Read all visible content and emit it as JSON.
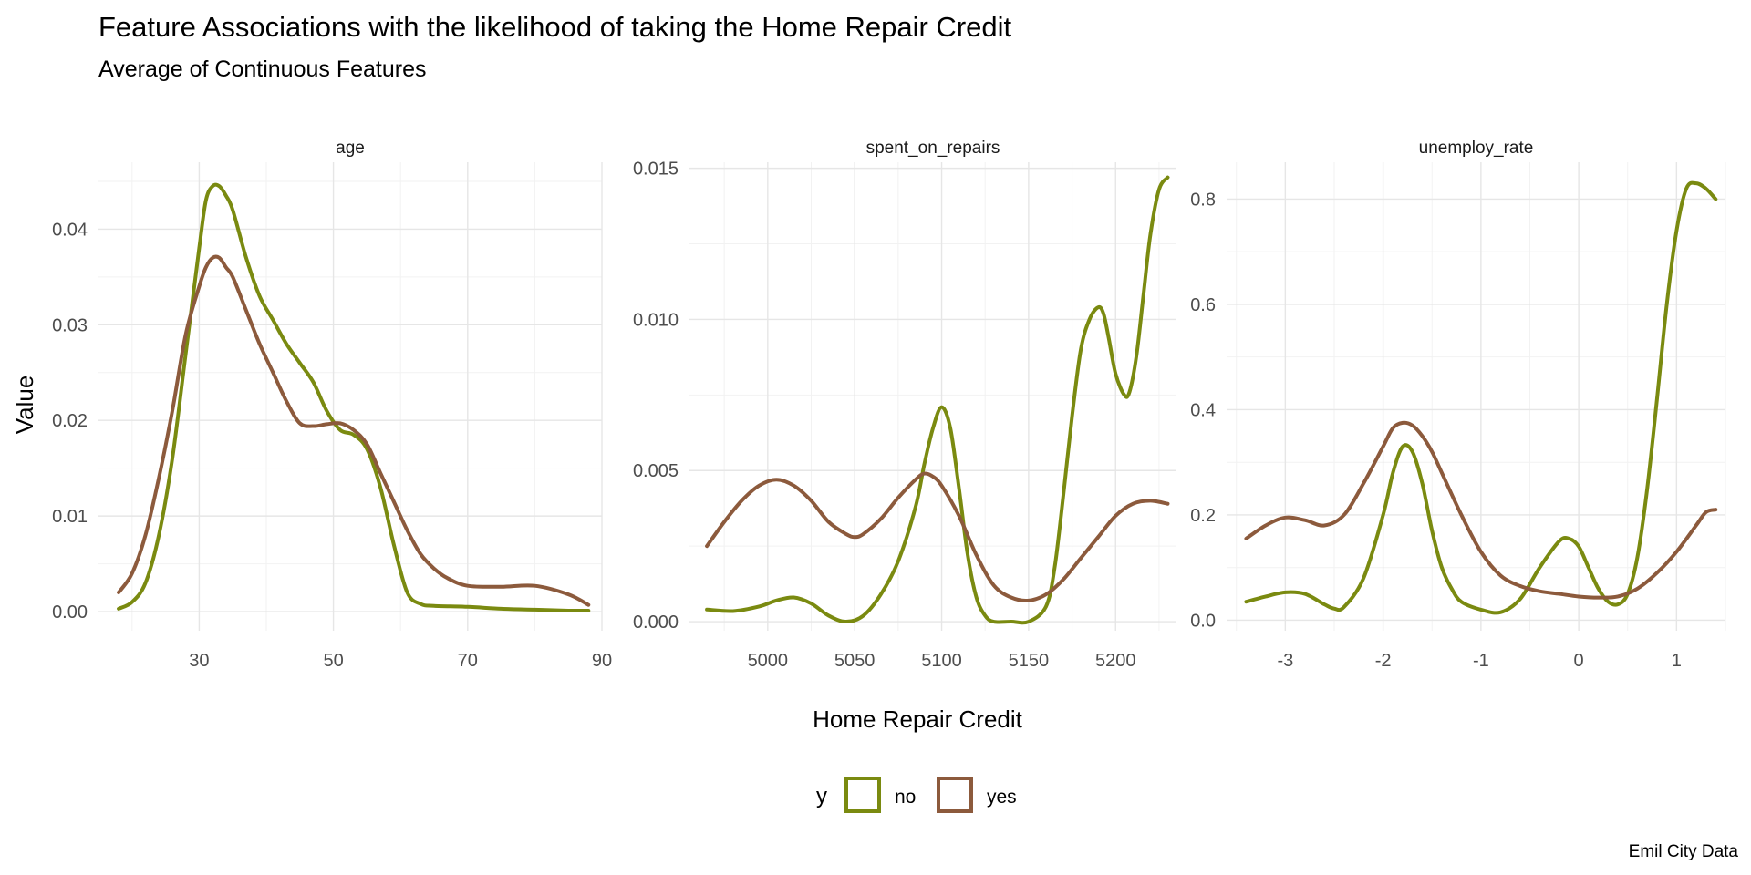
{
  "title": "Feature Associations with the likelihood of taking the Home Repair Credit",
  "subtitle": "Average of Continuous Features",
  "caption": "Emil City Data",
  "chart_data": {
    "type": "line",
    "xlabel": "Home Repair Credit",
    "ylabel": "Value",
    "legend": {
      "title": "y",
      "position": "bottom",
      "items": [
        {
          "name": "no",
          "color": "#7a8a10"
        },
        {
          "name": "yes",
          "color": "#8c5a3c"
        }
      ]
    },
    "grid": true,
    "panels": [
      {
        "name": "age",
        "xlim": [
          15,
          90
        ],
        "ylim": [
          -0.002,
          0.047
        ],
        "xticks": [
          30,
          50,
          70,
          90
        ],
        "xtick_labels": [
          "30",
          "50",
          "70",
          "90"
        ],
        "yticks": [
          0,
          0.01,
          0.02,
          0.03,
          0.04
        ],
        "ytick_labels": [
          "0.00",
          "0.01",
          "0.02",
          "0.03",
          "0.04"
        ],
        "series": [
          {
            "name": "no",
            "x": [
              18,
              20,
              22,
              24,
              26,
              28,
              30,
              31,
              32,
              33,
              34,
              35,
              37,
              39,
              41,
              43,
              45,
              47,
              49,
              51,
              53,
              55,
              57,
              59,
              61,
              63,
              65,
              70,
              75,
              80,
              85,
              88
            ],
            "y": [
              0.0003,
              0.001,
              0.003,
              0.008,
              0.016,
              0.027,
              0.038,
              0.043,
              0.0445,
              0.0445,
              0.0435,
              0.042,
              0.037,
              0.033,
              0.0305,
              0.028,
              0.026,
              0.024,
              0.021,
              0.019,
              0.0185,
              0.017,
              0.013,
              0.007,
              0.002,
              0.0008,
              0.0006,
              0.0005,
              0.0003,
              0.0002,
              0.0001,
              0.0001
            ]
          },
          {
            "name": "yes",
            "x": [
              18,
              20,
              22,
              24,
              26,
              28,
              30,
              31,
              32,
              33,
              34,
              35,
              37,
              39,
              41,
              43,
              45,
              47,
              49,
              51,
              53,
              55,
              57,
              59,
              61,
              63,
              65,
              67,
              70,
              75,
              80,
              85,
              88
            ],
            "y": [
              0.002,
              0.004,
              0.008,
              0.014,
              0.021,
              0.029,
              0.034,
              0.036,
              0.037,
              0.037,
              0.036,
              0.035,
              0.0315,
              0.028,
              0.025,
              0.022,
              0.0197,
              0.0194,
              0.0196,
              0.0197,
              0.019,
              0.0175,
              0.0145,
              0.0115,
              0.0085,
              0.006,
              0.0045,
              0.0035,
              0.0027,
              0.0026,
              0.0027,
              0.0018,
              0.0007
            ]
          }
        ]
      },
      {
        "name": "spent_on_repairs",
        "xlim": [
          4955,
          5235
        ],
        "ylim": [
          -0.0003,
          0.0152
        ],
        "xticks": [
          5000,
          5050,
          5100,
          5150,
          5200
        ],
        "xtick_labels": [
          "5000",
          "5050",
          "5100",
          "5150",
          "5200"
        ],
        "yticks": [
          0,
          0.005,
          0.01,
          0.015
        ],
        "ytick_labels": [
          "0.000",
          "0.005",
          "0.010",
          "0.015"
        ],
        "series": [
          {
            "name": "no",
            "x": [
              4965,
              4980,
              4995,
              5005,
              5015,
              5025,
              5035,
              5045,
              5055,
              5065,
              5075,
              5085,
              5090,
              5095,
              5100,
              5105,
              5110,
              5115,
              5120,
              5125,
              5130,
              5140,
              5150,
              5160,
              5165,
              5170,
              5175,
              5180,
              5185,
              5190,
              5193,
              5196,
              5200,
              5205,
              5208,
              5212,
              5216,
              5220,
              5225,
              5230
            ],
            "y": [
              0.0004,
              0.00035,
              0.0005,
              0.0007,
              0.0008,
              0.0006,
              0.0002,
              0.0,
              0.0002,
              0.0009,
              0.002,
              0.0038,
              0.0052,
              0.0064,
              0.0071,
              0.0064,
              0.0044,
              0.0022,
              0.0008,
              0.0002,
              0.0,
              0.0,
              0.0,
              0.0005,
              0.0018,
              0.0042,
              0.0068,
              0.009,
              0.01,
              0.0104,
              0.0102,
              0.0094,
              0.0082,
              0.0075,
              0.0076,
              0.0088,
              0.0108,
              0.0128,
              0.0143,
              0.0147
            ]
          },
          {
            "name": "yes",
            "x": [
              4965,
              4975,
              4985,
              4995,
              5005,
              5015,
              5025,
              5035,
              5045,
              5050,
              5055,
              5065,
              5075,
              5085,
              5090,
              5095,
              5100,
              5110,
              5120,
              5130,
              5140,
              5150,
              5160,
              5170,
              5180,
              5190,
              5200,
              5210,
              5220,
              5230
            ],
            "y": [
              0.0025,
              0.0033,
              0.004,
              0.0045,
              0.0047,
              0.0045,
              0.004,
              0.0033,
              0.0029,
              0.0028,
              0.0029,
              0.0034,
              0.0041,
              0.0047,
              0.0049,
              0.0048,
              0.0045,
              0.0035,
              0.0022,
              0.0012,
              0.0008,
              0.0007,
              0.0009,
              0.0014,
              0.0021,
              0.0028,
              0.0035,
              0.0039,
              0.004,
              0.0039
            ]
          }
        ]
      },
      {
        "name": "unemploy_rate",
        "xlim": [
          -3.6,
          1.5
        ],
        "ylim": [
          -0.02,
          0.87
        ],
        "xticks": [
          -3,
          -2,
          -1,
          0,
          1
        ],
        "xtick_labels": [
          "-3",
          "-2",
          "-1",
          "0",
          "1"
        ],
        "yticks": [
          0,
          0.2,
          0.4,
          0.6,
          0.8
        ],
        "ytick_labels": [
          "0.0",
          "0.2",
          "0.4",
          "0.6",
          "0.8"
        ],
        "series": [
          {
            "name": "no",
            "x": [
              -3.4,
              -3.2,
              -3.0,
              -2.8,
              -2.6,
              -2.5,
              -2.4,
              -2.2,
              -2.0,
              -1.9,
              -1.8,
              -1.7,
              -1.6,
              -1.5,
              -1.4,
              -1.3,
              -1.2,
              -1.0,
              -0.8,
              -0.6,
              -0.4,
              -0.2,
              -0.1,
              0.0,
              0.1,
              0.2,
              0.3,
              0.4,
              0.5,
              0.6,
              0.7,
              0.8,
              0.9,
              1.0,
              1.1,
              1.2,
              1.3,
              1.4
            ],
            "y": [
              0.035,
              0.045,
              0.053,
              0.05,
              0.03,
              0.022,
              0.025,
              0.08,
              0.2,
              0.28,
              0.33,
              0.32,
              0.26,
              0.17,
              0.1,
              0.06,
              0.035,
              0.02,
              0.015,
              0.04,
              0.1,
              0.15,
              0.155,
              0.14,
              0.1,
              0.06,
              0.035,
              0.03,
              0.05,
              0.12,
              0.25,
              0.42,
              0.6,
              0.74,
              0.82,
              0.83,
              0.82,
              0.8
            ]
          },
          {
            "name": "yes",
            "x": [
              -3.4,
              -3.2,
              -3.0,
              -2.8,
              -2.6,
              -2.4,
              -2.2,
              -2.0,
              -1.9,
              -1.8,
              -1.7,
              -1.6,
              -1.5,
              -1.4,
              -1.2,
              -1.0,
              -0.8,
              -0.6,
              -0.4,
              -0.2,
              0.0,
              0.2,
              0.4,
              0.6,
              0.8,
              1.0,
              1.2,
              1.3,
              1.4
            ],
            "y": [
              0.155,
              0.18,
              0.195,
              0.19,
              0.18,
              0.2,
              0.26,
              0.33,
              0.365,
              0.375,
              0.37,
              0.35,
              0.32,
              0.28,
              0.2,
              0.13,
              0.085,
              0.065,
              0.055,
              0.05,
              0.045,
              0.043,
              0.045,
              0.06,
              0.09,
              0.13,
              0.18,
              0.205,
              0.21
            ]
          }
        ]
      }
    ]
  }
}
